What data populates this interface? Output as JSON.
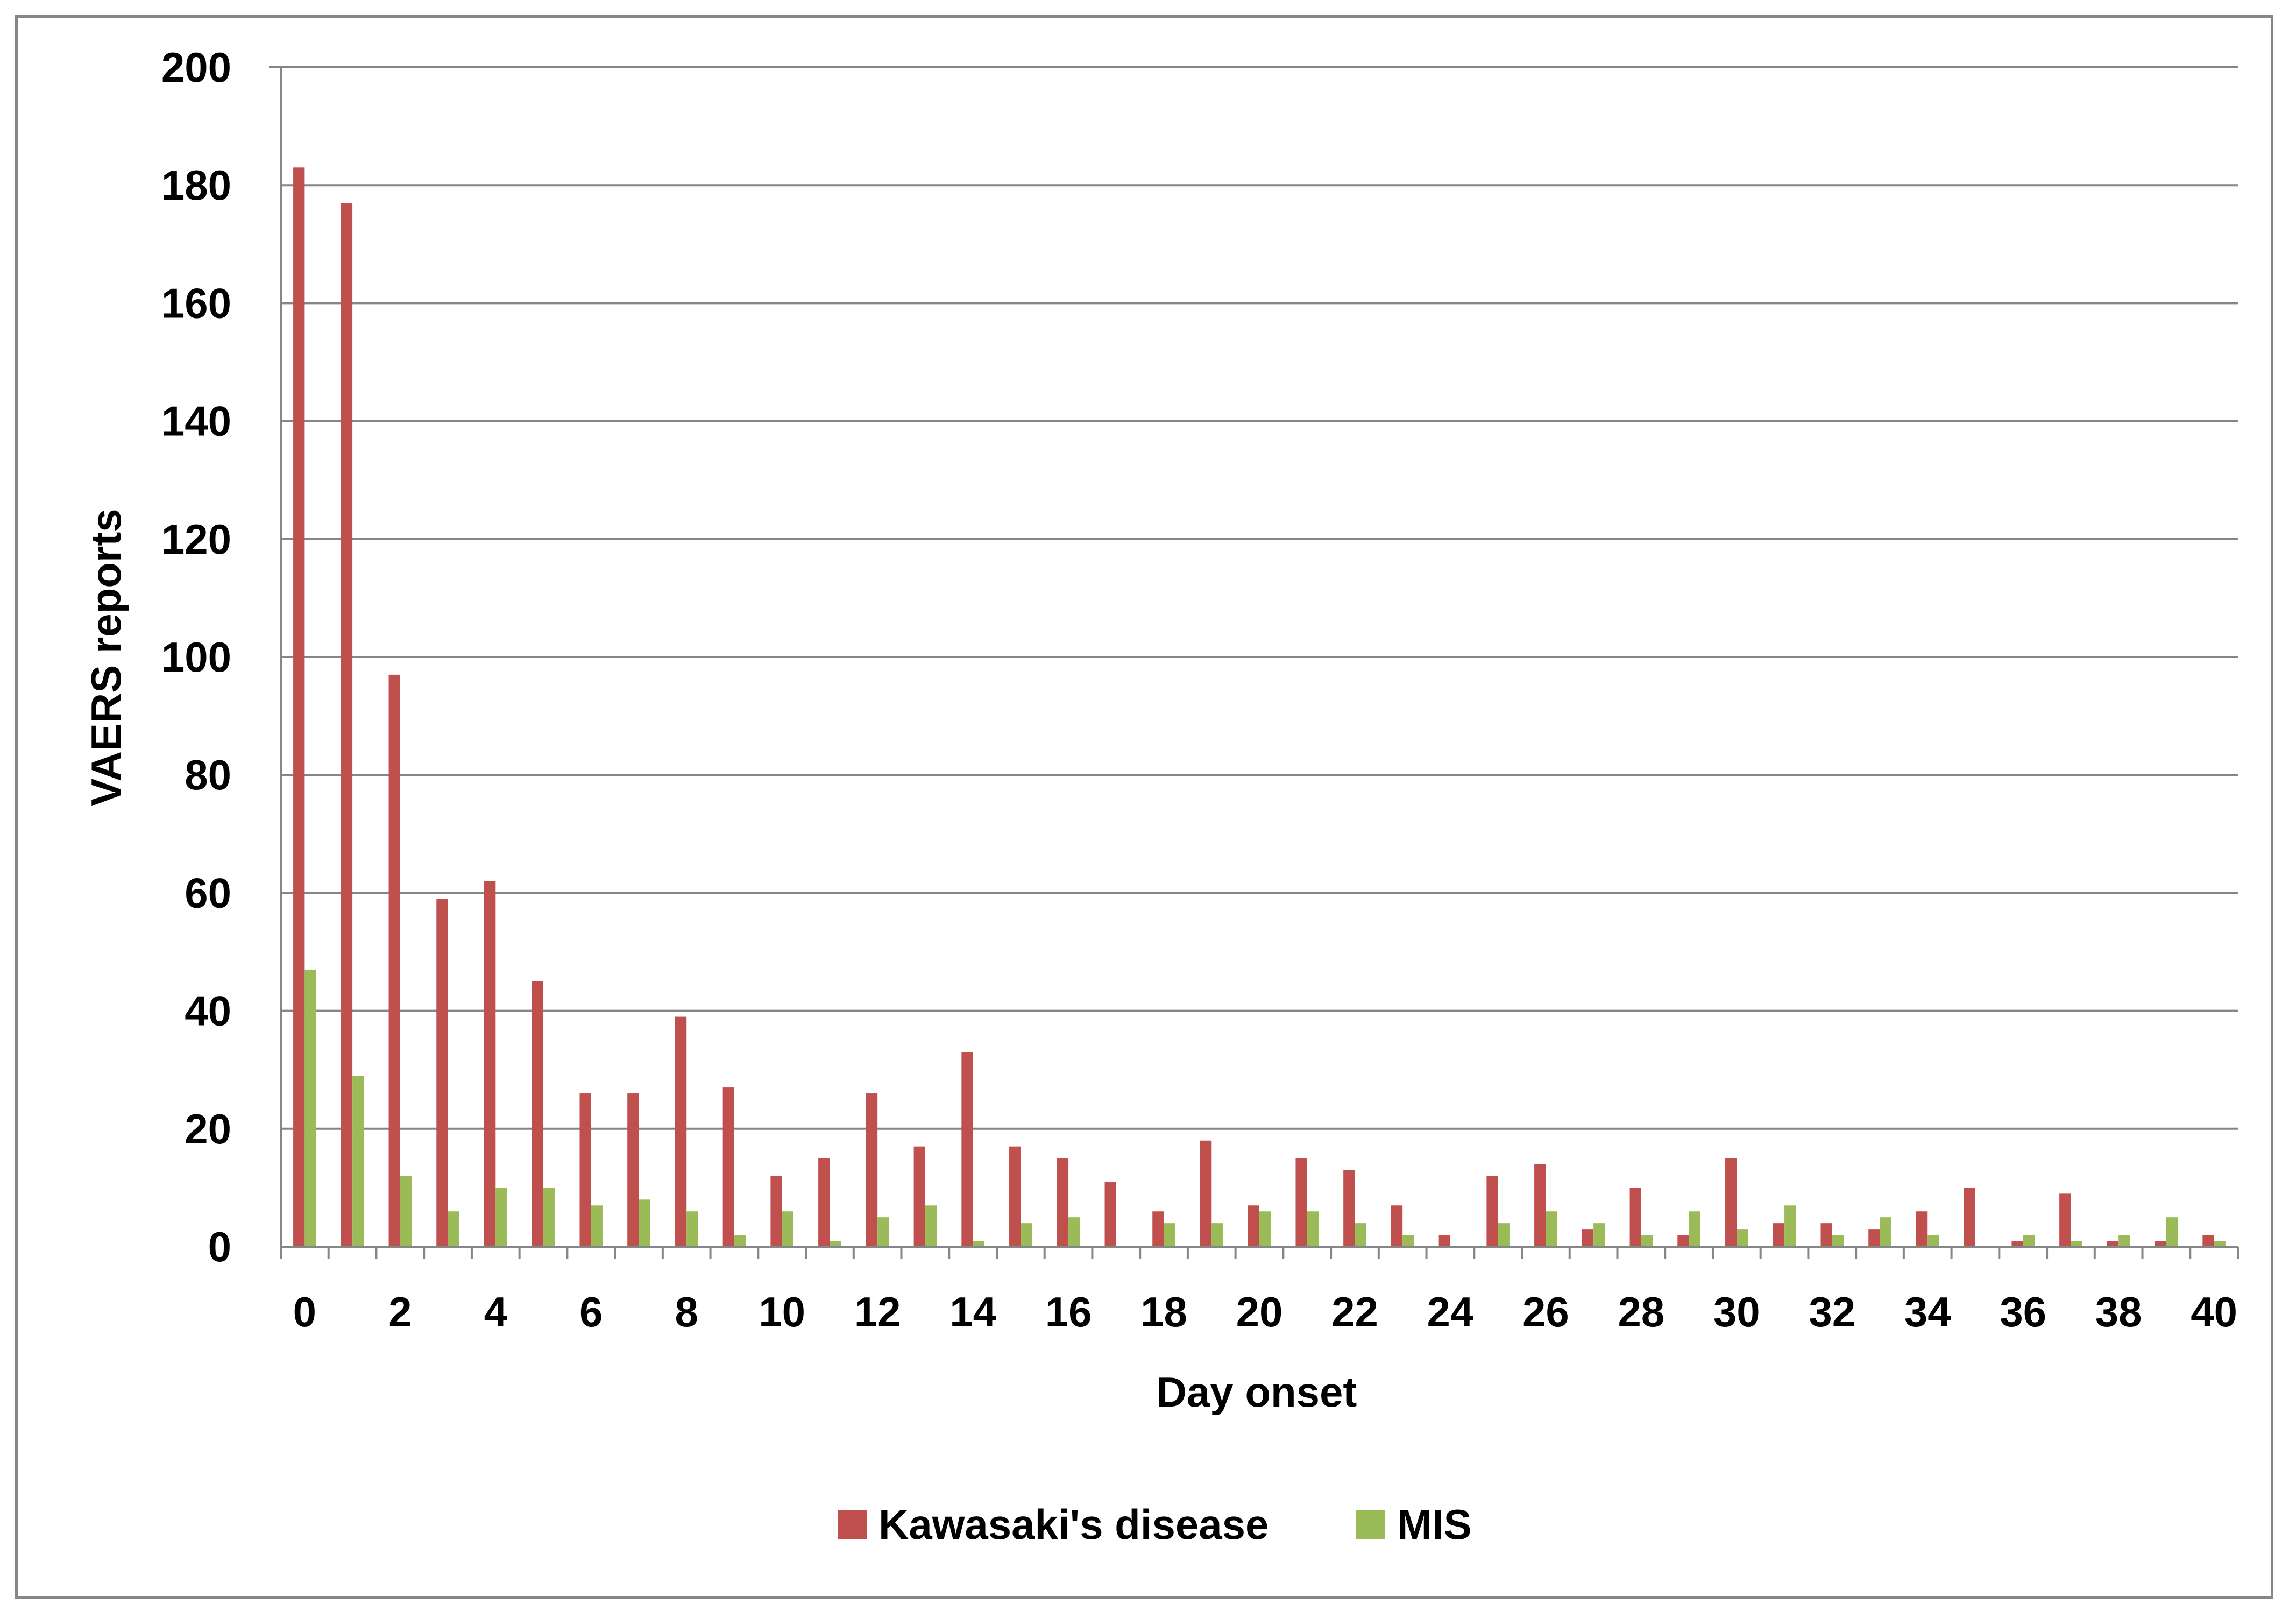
{
  "chart_data": {
    "type": "bar",
    "title": "",
    "xlabel": "Day onset",
    "ylabel": "VAERS reports",
    "ylim": [
      0,
      200
    ],
    "yticks": [
      "0",
      "20",
      "40",
      "60",
      "80",
      "100",
      "120",
      "140",
      "160",
      "180",
      "200"
    ],
    "categories": [
      "0",
      "1",
      "2",
      "3",
      "4",
      "5",
      "6",
      "7",
      "8",
      "9",
      "10",
      "11",
      "12",
      "13",
      "14",
      "15",
      "16",
      "17",
      "18",
      "19",
      "20",
      "21",
      "22",
      "23",
      "24",
      "25",
      "26",
      "27",
      "28",
      "29",
      "30",
      "31",
      "32",
      "33",
      "34",
      "35",
      "36",
      "37",
      "38",
      "39",
      "40"
    ],
    "xtick_labels": [
      "0",
      "",
      "2",
      "",
      "4",
      "",
      "6",
      "",
      "8",
      "",
      "10",
      "",
      "12",
      "",
      "14",
      "",
      "16",
      "",
      "18",
      "",
      "20",
      "",
      "22",
      "",
      "24",
      "",
      "26",
      "",
      "28",
      "",
      "30",
      "",
      "32",
      "",
      "34",
      "",
      "36",
      "",
      "38",
      "",
      "40"
    ],
    "grid": "horizontal major gridlines",
    "legend_position": "bottom",
    "series": [
      {
        "name": "Kawasaki's disease",
        "color": "#c0504d",
        "values": [
          183,
          177,
          97,
          59,
          62,
          45,
          26,
          26,
          39,
          27,
          12,
          15,
          26,
          17,
          33,
          17,
          15,
          11,
          6,
          18,
          7,
          15,
          13,
          7,
          2,
          12,
          14,
          3,
          10,
          2,
          15,
          4,
          4,
          3,
          6,
          10,
          1,
          9,
          1,
          1,
          2
        ]
      },
      {
        "name": "MIS",
        "color": "#9bbb59",
        "values": [
          47,
          29,
          12,
          6,
          10,
          10,
          7,
          8,
          6,
          2,
          6,
          1,
          5,
          7,
          1,
          4,
          5,
          0,
          4,
          4,
          6,
          6,
          4,
          2,
          0,
          4,
          6,
          4,
          2,
          6,
          3,
          7,
          2,
          5,
          2,
          0,
          2,
          1,
          2,
          5,
          1
        ]
      }
    ]
  }
}
